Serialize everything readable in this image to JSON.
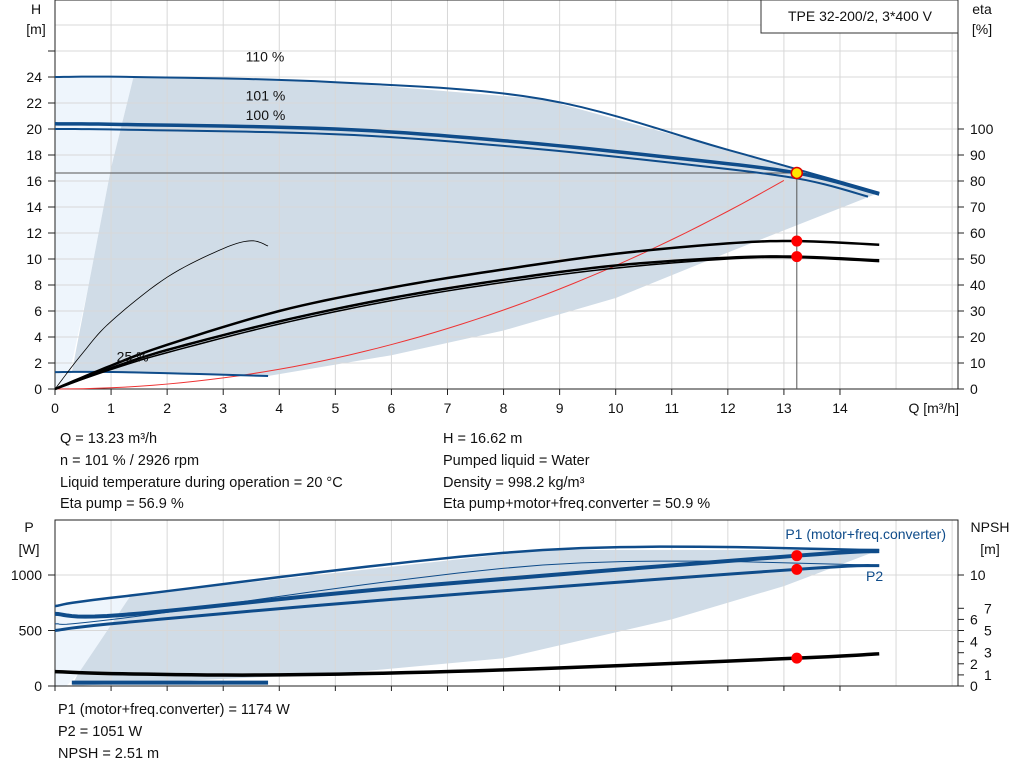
{
  "chart_data": [
    {
      "type": "line",
      "title": "TPE 32-200/2, 3*400 V",
      "xlabel": "Q [m³/h]",
      "ylabel": "H\n[m]",
      "y2label": "eta\n[%]",
      "xlim": [
        0,
        16
      ],
      "ylim": [
        0,
        30
      ],
      "y2lim": [
        0,
        115
      ],
      "xticks": [
        0,
        1,
        2,
        3,
        4,
        5,
        6,
        7,
        8,
        9,
        10,
        11,
        12,
        13,
        14
      ],
      "yticks": [
        0,
        2,
        4,
        6,
        8,
        10,
        12,
        14,
        16,
        18,
        20,
        22,
        24
      ],
      "y2ticks": [
        0,
        10,
        20,
        30,
        40,
        50,
        60,
        70,
        80,
        90,
        100
      ],
      "grid": true,
      "envelope_color": "#d0dce7",
      "envelope_light_color": "#eef5fc",
      "curve_color": "#0f4c8a",
      "labels": [
        {
          "text": "110 %",
          "x": 3.4,
          "y": 25.2
        },
        {
          "text": "101 %",
          "x": 3.4,
          "y": 21.2
        },
        {
          "text": "100 %",
          "x": 3.4,
          "y": 20.7
        },
        {
          "text": "25 %",
          "x": 1.1,
          "y": 2.1
        }
      ],
      "head_series": [
        {
          "name": "110 %",
          "values": [
            [
              0,
              24
            ],
            [
              1.4,
              24
            ],
            [
              5,
              23.6
            ],
            [
              8.7,
              22.3
            ],
            [
              12,
              18.4
            ],
            [
              14.7,
              15.1
            ]
          ]
        },
        {
          "name": "101 %",
          "values": [
            [
              0,
              20.4
            ],
            [
              1.2,
              20.35
            ],
            [
              5,
              20.0
            ],
            [
              8,
              19.1
            ],
            [
              11,
              17.8
            ],
            [
              13.23,
              16.62
            ],
            [
              14.7,
              15.0
            ]
          ]
        },
        {
          "name": "100 %",
          "values": [
            [
              0,
              20
            ],
            [
              1.2,
              19.95
            ],
            [
              5,
              19.6
            ],
            [
              8,
              18.7
            ],
            [
              11,
              17.4
            ],
            [
              13.23,
              16.2
            ],
            [
              14.5,
              14.8
            ]
          ]
        },
        {
          "name": "25 %",
          "values": [
            [
              0,
              1.3
            ],
            [
              1.2,
              1.3
            ],
            [
              3.8,
              1.0
            ]
          ]
        }
      ],
      "eta_series": [
        {
          "values": [
            [
              0,
              0
            ],
            [
              1,
              9
            ],
            [
              2,
              17
            ],
            [
              4,
              30
            ],
            [
              6,
              39
            ],
            [
              8,
              46
            ],
            [
              10,
              52
            ],
            [
              12,
              56
            ],
            [
              13.23,
              56.9
            ],
            [
              14.7,
              55.5
            ]
          ]
        },
        {
          "values": [
            [
              0,
              0
            ],
            [
              1,
              8
            ],
            [
              2,
              15
            ],
            [
              4,
              26
            ],
            [
              6,
              35
            ],
            [
              8,
              42
            ],
            [
              10,
              47.5
            ],
            [
              12,
              50.5
            ],
            [
              13.23,
              50.9
            ],
            [
              14.7,
              49.5
            ]
          ]
        },
        {
          "values": [
            [
              0,
              0
            ],
            [
              1,
              7.5
            ],
            [
              2,
              14
            ],
            [
              4,
              25
            ],
            [
              6,
              34
            ],
            [
              8,
              41
            ],
            [
              10,
              46.5
            ],
            [
              12,
              50
            ],
            [
              13.23,
              50.5
            ],
            [
              14.7,
              49
            ]
          ]
        },
        {
          "values": [
            [
              0,
              0
            ],
            [
              0.5,
              14
            ],
            [
              1,
              26
            ],
            [
              2,
              43
            ],
            [
              3,
              54
            ],
            [
              3.5,
              57
            ],
            [
              3.8,
              55
            ]
          ]
        }
      ],
      "system_curve": {
        "q": 13.23,
        "h": 16.62
      },
      "operating_points": {
        "h": 16.62,
        "eta_pump": 56.9,
        "eta_total": 50.9
      }
    },
    {
      "type": "line",
      "ylabel": "P\n[W]",
      "y2label": "NPSH\n[m]",
      "ylim": [
        0,
        1500
      ],
      "y2lim": [
        0,
        15
      ],
      "yticks": [
        0,
        500,
        1000
      ],
      "y2ticks": [
        0,
        1,
        2,
        3,
        4,
        5,
        6,
        7,
        10
      ],
      "p_series": [
        {
          "name": "P1 (motor+freq.converter)",
          "values": [
            [
              0,
              720
            ],
            [
              1.35,
              815
            ],
            [
              8.7,
              1225
            ],
            [
              14.7,
              1225
            ]
          ]
        },
        {
          "values": [
            [
              0,
              650
            ],
            [
              1.2,
              640
            ],
            [
              6,
              880
            ],
            [
              13.23,
              1174
            ],
            [
              14.7,
              1215
            ]
          ]
        },
        {
          "values": [
            [
              0,
              560
            ],
            [
              1.2,
              610
            ],
            [
              8.7,
              1090
            ],
            [
              14.7,
              1090
            ]
          ]
        },
        {
          "name": "P2",
          "values": [
            [
              0,
              500
            ],
            [
              1.2,
              570
            ],
            [
              6,
              780
            ],
            [
              13.23,
              1051
            ],
            [
              14.7,
              1085
            ]
          ]
        },
        {
          "values": [
            [
              0.3,
              30
            ],
            [
              3.8,
              30
            ]
          ]
        }
      ],
      "npsh_series": [
        {
          "values": [
            [
              0,
              1.3
            ],
            [
              1.2,
              1.1
            ],
            [
              4,
              1.0
            ],
            [
              8,
              1.45
            ],
            [
              13.23,
              2.51
            ],
            [
              14.7,
              2.9
            ]
          ]
        }
      ],
      "operating_points": {
        "p1": 1174,
        "p2": 1051,
        "npsh": 2.51
      }
    }
  ],
  "info": {
    "left": [
      "Q = 13.23 m³/h",
      "n = 101 % / 2926 rpm",
      "Liquid temperature during operation = 20 °C",
      "Eta pump = 56.9 %"
    ],
    "right": [
      "H = 16.62 m",
      "Pumped liquid = Water",
      "Density = 998.2 kg/m³",
      "Eta pump+motor+freq.converter = 50.9 %"
    ],
    "bottom": [
      "P1 (motor+freq.converter) = 1174 W",
      "P2 = 1051 W",
      "NPSH = 2.51 m"
    ]
  }
}
